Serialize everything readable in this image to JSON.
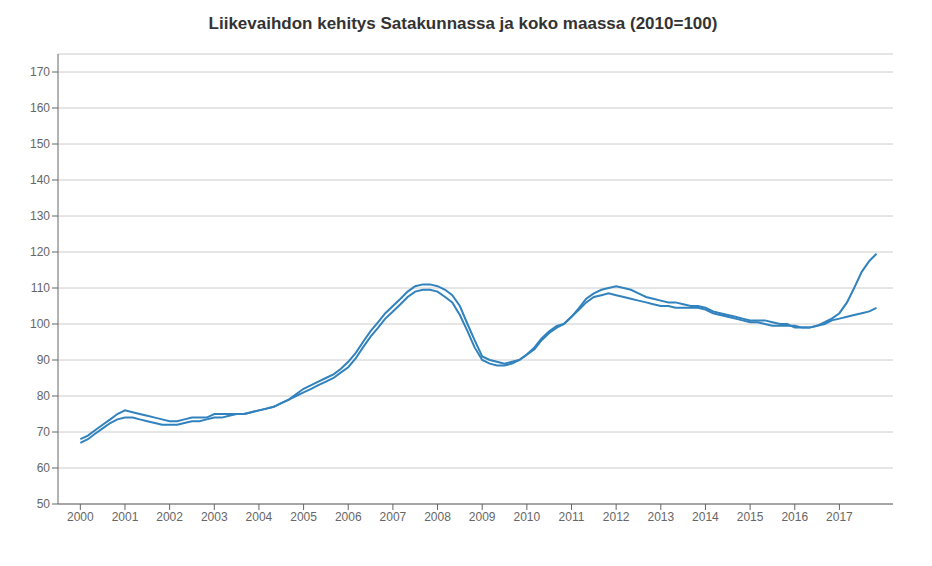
{
  "chart_data": {
    "type": "line",
    "title": "Liikevaihdon kehitys Satakunnassa ja koko maassa (2010=100)",
    "x": [
      2000.0,
      2000.17,
      2000.33,
      2000.5,
      2000.67,
      2000.83,
      2001.0,
      2001.17,
      2001.33,
      2001.5,
      2001.67,
      2001.83,
      2002.0,
      2002.17,
      2002.33,
      2002.5,
      2002.67,
      2002.83,
      2003.0,
      2003.17,
      2003.33,
      2003.5,
      2003.67,
      2003.83,
      2004.0,
      2004.17,
      2004.33,
      2004.5,
      2004.67,
      2004.83,
      2005.0,
      2005.17,
      2005.33,
      2005.5,
      2005.67,
      2005.83,
      2006.0,
      2006.17,
      2006.33,
      2006.5,
      2006.67,
      2006.83,
      2007.0,
      2007.17,
      2007.33,
      2007.5,
      2007.67,
      2007.83,
      2008.0,
      2008.17,
      2008.33,
      2008.5,
      2008.67,
      2008.83,
      2009.0,
      2009.17,
      2009.33,
      2009.5,
      2009.67,
      2009.83,
      2010.0,
      2010.17,
      2010.33,
      2010.5,
      2010.67,
      2010.83,
      2011.0,
      2011.17,
      2011.33,
      2011.5,
      2011.67,
      2011.83,
      2012.0,
      2012.17,
      2012.33,
      2012.5,
      2012.67,
      2012.83,
      2013.0,
      2013.17,
      2013.33,
      2013.5,
      2013.67,
      2013.83,
      2014.0,
      2014.17,
      2014.33,
      2014.5,
      2014.67,
      2014.83,
      2015.0,
      2015.17,
      2015.33,
      2015.5,
      2015.67,
      2015.83,
      2016.0,
      2016.17,
      2016.33,
      2016.5,
      2016.67,
      2016.83,
      2017.0,
      2017.17,
      2017.33,
      2017.5,
      2017.67,
      2017.83
    ],
    "series": [
      {
        "values": [
          68.0,
          69.0,
          70.5,
          72.0,
          73.5,
          75.0,
          76.0,
          75.5,
          75.0,
          74.5,
          74.0,
          73.5,
          73.0,
          73.0,
          73.5,
          74.0,
          74.0,
          74.0,
          75.0,
          75.0,
          75.0,
          75.0,
          75.0,
          75.5,
          76.0,
          76.5,
          77.0,
          78.0,
          79.0,
          80.5,
          82.0,
          83.0,
          84.0,
          85.0,
          86.0,
          87.5,
          89.5,
          92.0,
          95.0,
          98.0,
          100.5,
          103.0,
          105.0,
          107.0,
          109.0,
          110.5,
          111.0,
          111.0,
          110.5,
          109.5,
          108.0,
          105.0,
          100.0,
          95.5,
          91.0,
          90.0,
          89.5,
          89.0,
          89.5,
          90.0,
          91.5,
          93.0,
          95.5,
          97.5,
          99.0,
          100.0,
          102.0,
          104.5,
          107.0,
          108.5,
          109.5,
          110.0,
          110.5,
          110.0,
          109.5,
          108.5,
          107.5,
          107.0,
          106.5,
          106.0,
          106.0,
          105.5,
          105.0,
          105.0,
          104.5,
          103.5,
          103.0,
          102.5,
          102.0,
          101.5,
          101.0,
          101.0,
          101.0,
          100.5,
          100.0,
          100.0,
          99.0,
          99.0,
          99.0,
          99.5,
          100.5,
          101.5,
          103.0,
          106.0,
          110.0,
          114.5,
          117.5,
          119.5
        ]
      },
      {
        "values": [
          67.0,
          68.0,
          69.5,
          71.0,
          72.5,
          73.5,
          74.0,
          74.0,
          73.5,
          73.0,
          72.5,
          72.0,
          72.0,
          72.0,
          72.5,
          73.0,
          73.0,
          73.5,
          74.0,
          74.0,
          74.5,
          75.0,
          75.0,
          75.5,
          76.0,
          76.5,
          77.0,
          78.0,
          79.0,
          80.0,
          81.0,
          82.0,
          83.0,
          84.0,
          85.0,
          86.5,
          88.0,
          90.5,
          93.5,
          96.5,
          99.0,
          101.5,
          103.5,
          105.5,
          107.5,
          109.0,
          109.5,
          109.5,
          109.0,
          107.5,
          106.0,
          102.5,
          98.0,
          93.5,
          90.0,
          89.0,
          88.5,
          88.5,
          89.0,
          90.0,
          91.5,
          93.5,
          96.0,
          98.0,
          99.5,
          100.0,
          102.0,
          104.0,
          106.0,
          107.5,
          108.0,
          108.5,
          108.0,
          107.5,
          107.0,
          106.5,
          106.0,
          105.5,
          105.0,
          105.0,
          104.5,
          104.5,
          104.5,
          104.5,
          104.0,
          103.0,
          102.5,
          102.0,
          101.5,
          101.0,
          100.5,
          100.5,
          100.0,
          99.5,
          99.5,
          99.5,
          99.5,
          99.0,
          99.0,
          99.5,
          100.0,
          101.0,
          101.5,
          102.0,
          102.5,
          103.0,
          103.5,
          104.5
        ]
      }
    ],
    "xlim": [
      1999.5,
      2018.2
    ],
    "xticks": [
      2000,
      2001,
      2002,
      2003,
      2004,
      2005,
      2006,
      2007,
      2008,
      2009,
      2010,
      2011,
      2012,
      2013,
      2014,
      2015,
      2016,
      2017
    ],
    "ylim": [
      50,
      175
    ],
    "yticks": [
      50,
      60,
      70,
      80,
      90,
      100,
      110,
      120,
      130,
      140,
      150,
      160,
      170
    ],
    "grid": true
  }
}
